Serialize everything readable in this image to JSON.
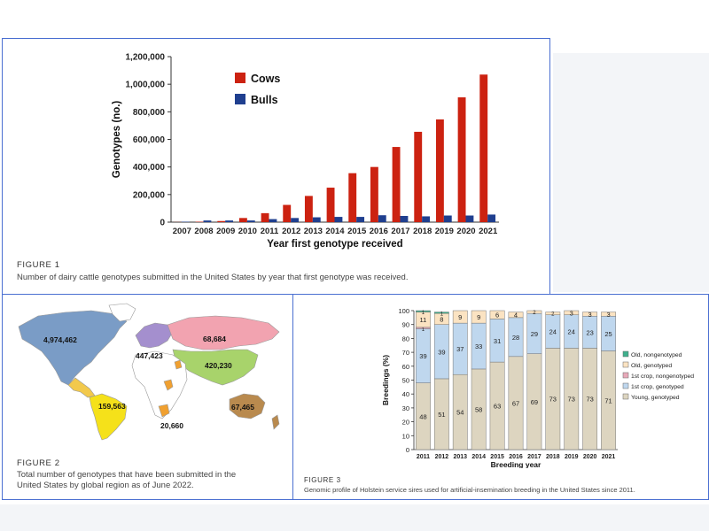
{
  "figure1": {
    "label": "FIGURE 1",
    "caption": "Number of dairy cattle genotypes submitted in the United States by year that first genotype was received.",
    "chart_data": {
      "type": "bar",
      "categories": [
        "2007",
        "2008",
        "2009",
        "2010",
        "2011",
        "2012",
        "2013",
        "2014",
        "2015",
        "2016",
        "2017",
        "2018",
        "2019",
        "2020",
        "2021"
      ],
      "series": [
        {
          "name": "Cows",
          "color": "#cc2211",
          "values": [
            800,
            3000,
            8000,
            30000,
            65000,
            125000,
            190000,
            250000,
            355000,
            400000,
            545000,
            655000,
            745000,
            905000,
            1070000
          ]
        },
        {
          "name": "Bulls",
          "color": "#1f3f8f",
          "values": [
            3000,
            12000,
            12000,
            12000,
            22000,
            30000,
            35000,
            38000,
            38000,
            50000,
            45000,
            42000,
            48000,
            48000,
            55000
          ]
        }
      ],
      "ylim": [
        0,
        1200000
      ],
      "yticks": [
        "0",
        "200,000",
        "400,000",
        "600,000",
        "800,000",
        "1,000,000",
        "1,200,000"
      ],
      "ytick_values": [
        0,
        200000,
        400000,
        600000,
        800000,
        1000000,
        1200000
      ],
      "xlabel": "Year first genotype received",
      "ylabel": "Genotypes (no.)",
      "legend_position": "top-left",
      "grid": false
    }
  },
  "figure2": {
    "label": "FIGURE 2",
    "caption_lines": [
      "Total number of genotypes that have been submitted in the",
      "United States by global region as of June 2022."
    ],
    "region_labels": {
      "north_america": "4,974,462",
      "europe": "447,423",
      "russia_asia": "68,684",
      "asia_middle": "420,230",
      "south_america": "159,563",
      "africa": "20,660",
      "oceania": "67,465"
    },
    "colors": {
      "north_america": "#7a9cc6",
      "central_america": "#f2c94c",
      "south_america": "#f5e11a",
      "europe": "#a48fce",
      "russia_asia": "#f2a3b0",
      "asia_middle": "#a8d36b",
      "africa_orange": "#f0a030",
      "oceania": "#b98a4e",
      "blank": "#ffffff",
      "border": "#999999"
    }
  },
  "figure3": {
    "label": "FIGURE 3",
    "caption": "Genomic profile of Holstein service sires used for artificial-insemination breeding in the United States since 2011.",
    "chart_data": {
      "type": "bar",
      "stacked": true,
      "categories": [
        "2011",
        "2012",
        "2013",
        "2014",
        "2015",
        "2016",
        "2017",
        "2018",
        "2019",
        "2020",
        "2021"
      ],
      "series": [
        {
          "name": "Young, genotyped",
          "color": "#ddd5c0",
          "values": [
            48,
            51,
            54,
            58,
            63,
            67,
            69,
            73,
            73,
            73,
            71
          ]
        },
        {
          "name": "1st crop, genotyped",
          "color": "#bfd7ee",
          "values": [
            39,
            39,
            37,
            33,
            31,
            28,
            29,
            24,
            24,
            23,
            25
          ]
        },
        {
          "name": "1st crop, nongenotyped",
          "color": "#e7a8b8",
          "values": [
            1,
            0,
            0,
            0,
            0,
            0,
            0,
            0,
            0,
            0,
            0
          ]
        },
        {
          "name": "Old, genotyped",
          "color": "#fbe3c2",
          "values": [
            11,
            8,
            9,
            9,
            6,
            4,
            2,
            2,
            3,
            3,
            3
          ]
        },
        {
          "name": "Old, nongenotyped",
          "color": "#3fb08d",
          "values": [
            1,
            1,
            0,
            0,
            0,
            0,
            0,
            0,
            0,
            0,
            0
          ]
        }
      ],
      "data_labels": {
        "young": [
          "48",
          "51",
          "54",
          "58",
          "63",
          "67",
          "69",
          "73",
          "73",
          "73",
          "71"
        ],
        "first_crop": [
          "39",
          "39",
          "37",
          "33",
          "31",
          "28",
          "29",
          "24",
          "24",
          "23",
          "25"
        ],
        "first_crop_nongeno": [
          "1",
          "",
          "",
          "",
          "",
          "",
          "",
          "",
          "",
          "",
          ""
        ],
        "old_geno": [
          "11",
          "8",
          "9",
          "9",
          "6",
          "4",
          "2",
          "2",
          "3",
          "3",
          "3"
        ],
        "old_nongeno": [
          "1",
          "1",
          "",
          "",
          "",
          "",
          "",
          "",
          "",
          "",
          ""
        ]
      },
      "ylim": [
        0,
        100
      ],
      "yticks": [
        "0",
        "10",
        "20",
        "30",
        "40",
        "50",
        "60",
        "70",
        "80",
        "90",
        "100"
      ],
      "ytick_values": [
        0,
        10,
        20,
        30,
        40,
        50,
        60,
        70,
        80,
        90,
        100
      ],
      "xlabel": "Breeding year",
      "ylabel": "Breedings (%)",
      "legend_position": "right",
      "legend_order": [
        "Old, nongenotyped",
        "Old, genotyped",
        "1st crop, nongenotyped",
        "1st crop, genotyped",
        "Young, genotyped"
      ]
    }
  }
}
